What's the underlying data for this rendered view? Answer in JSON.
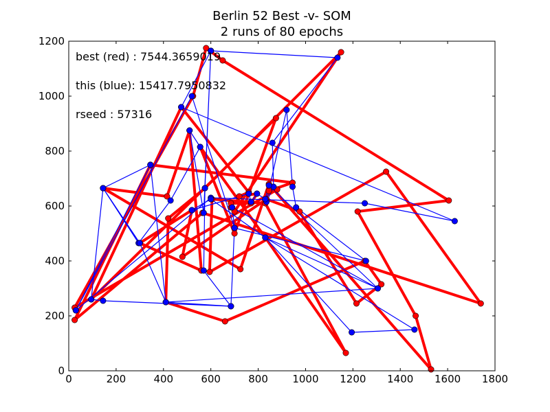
{
  "chart_data": {
    "type": "line",
    "title": "Berlin 52 Best -v- SOM",
    "subtitle": "2 runs of 80 epochs",
    "xlim": [
      0,
      1800
    ],
    "ylim": [
      0,
      1200
    ],
    "xticks": [
      0,
      200,
      400,
      600,
      800,
      1000,
      1200,
      1400,
      1600,
      1800
    ],
    "yticks": [
      0,
      200,
      400,
      600,
      800,
      1000,
      1200
    ],
    "grid": false,
    "annotations": [
      "best (red) : 7544.3659019",
      "this (blue): 15417.7950832",
      "rseed : 57316"
    ],
    "series": [
      {
        "color": "#ff0000",
        "marker_color": "#ff0000",
        "points": [
          [
            565,
            575
          ],
          [
            25,
            185
          ],
          [
            345,
            750
          ],
          [
            945,
            685
          ],
          [
            845,
            655
          ],
          [
            880,
            660
          ],
          [
            25,
            230
          ],
          [
            525,
            1000
          ],
          [
            580,
            1175
          ],
          [
            650,
            1130
          ],
          [
            1605,
            620
          ],
          [
            1220,
            580
          ],
          [
            1465,
            200
          ],
          [
            1530,
            5
          ],
          [
            845,
            680
          ],
          [
            725,
            370
          ],
          [
            145,
            665
          ],
          [
            415,
            635
          ],
          [
            510,
            875
          ],
          [
            560,
            365
          ],
          [
            300,
            465
          ],
          [
            520,
            585
          ],
          [
            480,
            415
          ],
          [
            835,
            625
          ],
          [
            975,
            580
          ],
          [
            1215,
            245
          ],
          [
            1320,
            315
          ],
          [
            1250,
            400
          ],
          [
            660,
            180
          ],
          [
            410,
            250
          ],
          [
            420,
            555
          ],
          [
            575,
            665
          ],
          [
            1150,
            1160
          ],
          [
            700,
            580
          ],
          [
            685,
            595
          ],
          [
            685,
            610
          ],
          [
            770,
            610
          ],
          [
            795,
            645
          ],
          [
            720,
            635
          ],
          [
            760,
            650
          ],
          [
            475,
            960
          ],
          [
            95,
            260
          ],
          [
            875,
            920
          ],
          [
            700,
            500
          ],
          [
            555,
            815
          ],
          [
            830,
            485
          ],
          [
            1170,
            65
          ],
          [
            830,
            610
          ],
          [
            605,
            625
          ],
          [
            595,
            360
          ],
          [
            1340,
            725
          ],
          [
            1740,
            245
          ],
          [
            565,
            575
          ]
        ]
      },
      {
        "color": "#0000ff",
        "marker_color": "#0000ff",
        "points": [
          [
            600,
            1165
          ],
          [
            1135,
            1140
          ],
          [
            860,
            830
          ],
          [
            865,
            670
          ],
          [
            835,
            615
          ],
          [
            920,
            950
          ],
          [
            945,
            670
          ],
          [
            960,
            595
          ],
          [
            1255,
            400
          ],
          [
            700,
            520
          ],
          [
            520,
            1000
          ],
          [
            30,
            220
          ],
          [
            345,
            750
          ],
          [
            30,
            220
          ],
          [
            600,
            630
          ],
          [
            1250,
            610
          ],
          [
            1630,
            545
          ],
          [
            475,
            960
          ],
          [
            600,
            1165
          ],
          [
            570,
            575
          ],
          [
            510,
            875
          ],
          [
            555,
            815
          ],
          [
            430,
            620
          ],
          [
            295,
            465
          ],
          [
            145,
            665
          ],
          [
            345,
            750
          ],
          [
            410,
            250
          ],
          [
            1305,
            300
          ],
          [
            830,
            485
          ],
          [
            1460,
            150
          ],
          [
            1195,
            140
          ],
          [
            830,
            485
          ],
          [
            600,
            625
          ],
          [
            520,
            585
          ],
          [
            760,
            645
          ],
          [
            770,
            615
          ],
          [
            795,
            645
          ],
          [
            830,
            625
          ],
          [
            845,
            675
          ],
          [
            1305,
            300
          ],
          [
            690,
            595
          ],
          [
            700,
            520
          ],
          [
            685,
            235
          ],
          [
            410,
            250
          ],
          [
            300,
            465
          ],
          [
            145,
            665
          ],
          [
            95,
            260
          ],
          [
            145,
            255
          ],
          [
            685,
            235
          ],
          [
            570,
            365
          ],
          [
            575,
            665
          ],
          [
            600,
            1165
          ]
        ]
      }
    ]
  }
}
